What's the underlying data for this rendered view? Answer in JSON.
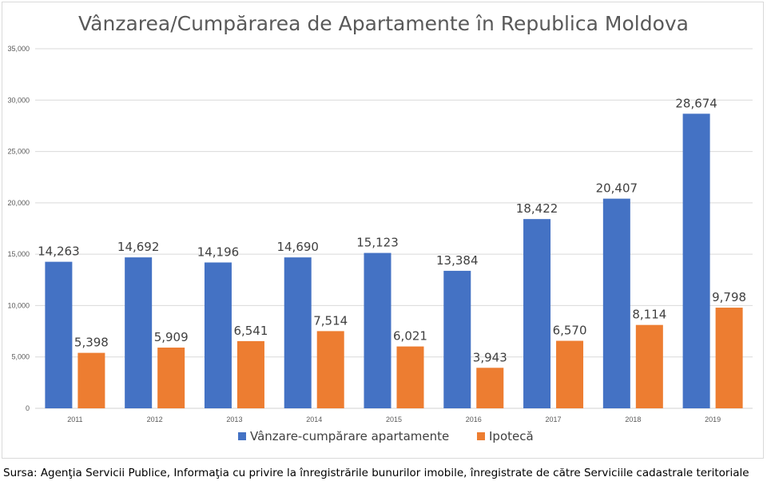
{
  "chart_data": {
    "type": "bar",
    "title": "Vânzarea/Cumpărarea de Apartamente în Republica Moldova",
    "categories": [
      "2011",
      "2012",
      "2013",
      "2014",
      "2015",
      "2016",
      "2017",
      "2018",
      "2019"
    ],
    "series": [
      {
        "name": "Vânzare-cumpărare apartamente",
        "color": "#4472c4",
        "values": [
          14263,
          14692,
          14196,
          14690,
          15123,
          13384,
          18422,
          20407,
          28674
        ],
        "labels": [
          "14,263",
          "14,692",
          "14,196",
          "14,690",
          "15,123",
          "13,384",
          "18,422",
          "20,407",
          "28,674"
        ]
      },
      {
        "name": "Ipotecă",
        "color": "#ed7d31",
        "values": [
          5398,
          5909,
          6541,
          7514,
          6021,
          3943,
          6570,
          8114,
          9798
        ],
        "labels": [
          "5,398",
          "5,909",
          "6,541",
          "7,514",
          "6,021",
          "3,943",
          "6,570",
          "8,114",
          "9,798"
        ]
      }
    ],
    "ylim": [
      0,
      35000
    ],
    "yticks": [
      0,
      5000,
      10000,
      15000,
      20000,
      25000,
      30000,
      35000
    ],
    "ytick_labels": [
      "0",
      "5,000",
      "10,000",
      "15,000",
      "20,000",
      "25,000",
      "30,000",
      "35,000"
    ],
    "grid": true,
    "legend_position": "bottom"
  },
  "source": "Sursa: Agenţia Servicii Publice, Informaţia cu privire la înregistrările bunurilor imobile, înregistrate de către Serviciile cadastrale teritoriale"
}
